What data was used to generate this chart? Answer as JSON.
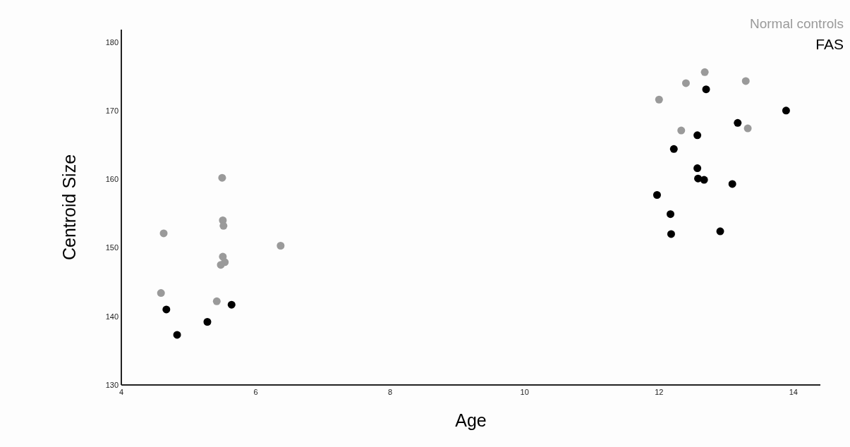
{
  "chart_data": {
    "type": "scatter",
    "xlabel": "Age",
    "ylabel": "Centroid Size",
    "xlim": [
      4,
      14.4
    ],
    "xticks": [
      4,
      6,
      8,
      10,
      12,
      14
    ],
    "ylim": [
      130,
      181.8
    ],
    "yticks": [
      130,
      140,
      150,
      160,
      170,
      180
    ],
    "grid": false,
    "legend": "top right",
    "marker": "circle",
    "series": [
      {
        "name": "Normal controls",
        "color": "#9a9a9a",
        "x": [
          5.5,
          4.63,
          5.51,
          5.52,
          6.37,
          5.51,
          5.54,
          5.48,
          4.59,
          5.42,
          12.68,
          12.4,
          13.29,
          12.0,
          12.33,
          13.32
        ],
        "values": [
          160.2,
          152.1,
          154.0,
          153.2,
          150.3,
          148.7,
          147.9,
          147.5,
          143.4,
          142.2,
          175.6,
          174.0,
          174.3,
          171.6,
          167.1,
          167.4
        ]
      },
      {
        "name": "FAS",
        "color": "#000000",
        "x": [
          4.67,
          4.83,
          5.28,
          5.64,
          12.7,
          13.89,
          13.17,
          12.57,
          12.22,
          12.57,
          12.58,
          12.67,
          13.09,
          11.97,
          12.17,
          12.18,
          12.91
        ],
        "values": [
          141.0,
          137.3,
          139.2,
          141.7,
          173.1,
          170.0,
          168.2,
          166.4,
          164.4,
          161.6,
          160.1,
          159.9,
          159.3,
          157.7,
          154.9,
          152.0,
          152.4
        ]
      }
    ]
  }
}
